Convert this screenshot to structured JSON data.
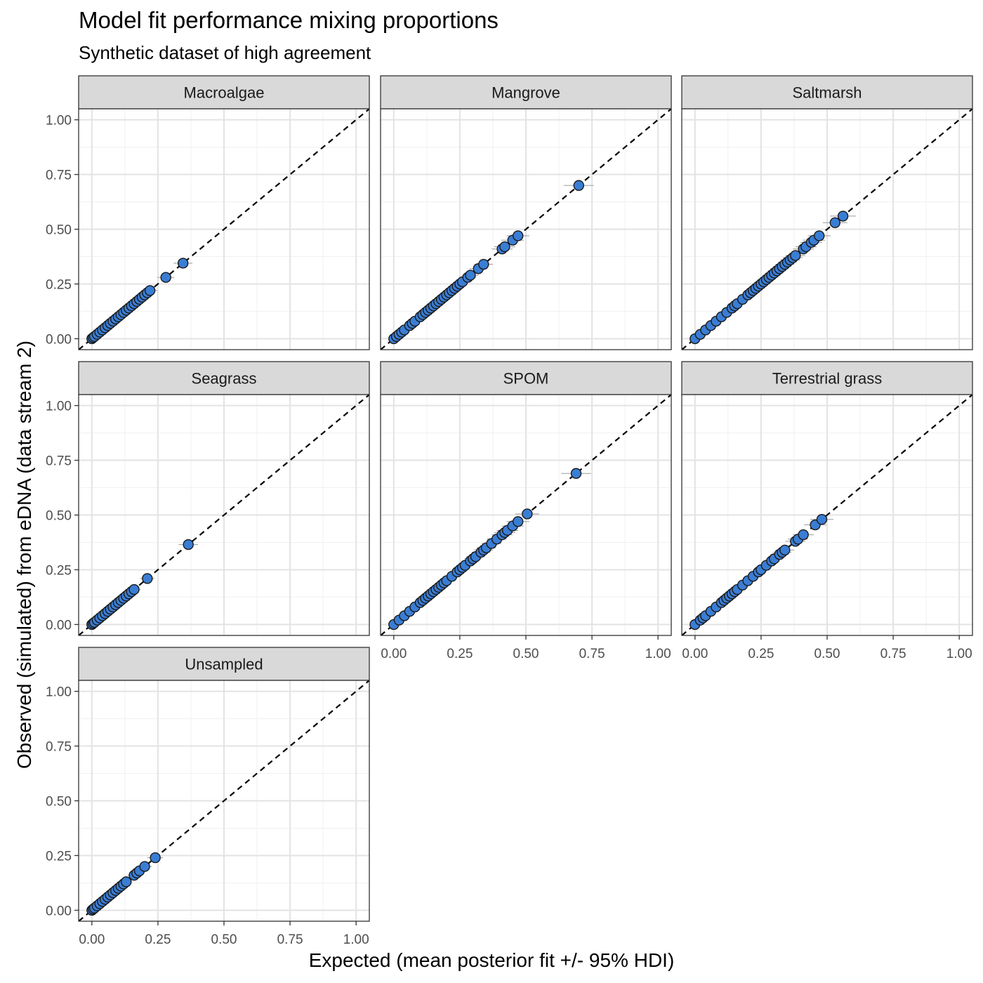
{
  "chart_data": {
    "type": "scatter",
    "title": "Model fit performance mixing proportions",
    "subtitle": "Synthetic dataset of high agreement",
    "xlabel": "Expected (mean posterior fit +/- 95% HDI)",
    "ylabel": "Observed (simulated) from eDNA (data stream 2)",
    "xlim": [
      -0.05,
      1.05
    ],
    "ylim": [
      -0.05,
      1.05
    ],
    "x_ticks": [
      "0.00",
      "0.25",
      "0.50",
      "0.75",
      "1.00"
    ],
    "y_ticks": [
      "0.00",
      "0.25",
      "0.50",
      "0.75",
      "1.00"
    ],
    "grid": true,
    "reference_line": "y = x (dashed)",
    "point_color": "#3a7dd4",
    "facets": [
      {
        "name": "Macroalgae",
        "points": [
          [
            0,
            0
          ],
          [
            0.005,
            0.005
          ],
          [
            0.01,
            0.01
          ],
          [
            0.02,
            0.02
          ],
          [
            0.03,
            0.03
          ],
          [
            0.04,
            0.04
          ],
          [
            0.05,
            0.05
          ],
          [
            0.06,
            0.06
          ],
          [
            0.07,
            0.07
          ],
          [
            0.08,
            0.08
          ],
          [
            0.09,
            0.09
          ],
          [
            0.1,
            0.1
          ],
          [
            0.11,
            0.11
          ],
          [
            0.12,
            0.12
          ],
          [
            0.13,
            0.13
          ],
          [
            0.14,
            0.14
          ],
          [
            0.15,
            0.15
          ],
          [
            0.16,
            0.16
          ],
          [
            0.17,
            0.17
          ],
          [
            0.18,
            0.18
          ],
          [
            0.19,
            0.19
          ],
          [
            0.2,
            0.2
          ],
          [
            0.21,
            0.21
          ],
          [
            0.22,
            0.22
          ],
          [
            0.28,
            0.28
          ],
          [
            0.345,
            0.345
          ]
        ]
      },
      {
        "name": "Mangrove",
        "points": [
          [
            0,
            0
          ],
          [
            0.01,
            0.01
          ],
          [
            0.02,
            0.02
          ],
          [
            0.03,
            0.03
          ],
          [
            0.04,
            0.04
          ],
          [
            0.06,
            0.06
          ],
          [
            0.07,
            0.07
          ],
          [
            0.08,
            0.08
          ],
          [
            0.1,
            0.1
          ],
          [
            0.11,
            0.11
          ],
          [
            0.12,
            0.12
          ],
          [
            0.13,
            0.13
          ],
          [
            0.14,
            0.14
          ],
          [
            0.15,
            0.15
          ],
          [
            0.16,
            0.16
          ],
          [
            0.17,
            0.17
          ],
          [
            0.18,
            0.18
          ],
          [
            0.19,
            0.19
          ],
          [
            0.2,
            0.2
          ],
          [
            0.21,
            0.21
          ],
          [
            0.22,
            0.22
          ],
          [
            0.23,
            0.23
          ],
          [
            0.24,
            0.24
          ],
          [
            0.25,
            0.25
          ],
          [
            0.26,
            0.26
          ],
          [
            0.28,
            0.28
          ],
          [
            0.29,
            0.29
          ],
          [
            0.32,
            0.32
          ],
          [
            0.34,
            0.34
          ],
          [
            0.41,
            0.41
          ],
          [
            0.42,
            0.42
          ],
          [
            0.45,
            0.45
          ],
          [
            0.47,
            0.47
          ],
          [
            0.7,
            0.7
          ]
        ]
      },
      {
        "name": "Saltmarsh",
        "points": [
          [
            0,
            0
          ],
          [
            0.02,
            0.02
          ],
          [
            0.04,
            0.04
          ],
          [
            0.06,
            0.06
          ],
          [
            0.08,
            0.08
          ],
          [
            0.1,
            0.1
          ],
          [
            0.12,
            0.12
          ],
          [
            0.14,
            0.14
          ],
          [
            0.15,
            0.15
          ],
          [
            0.16,
            0.16
          ],
          [
            0.18,
            0.18
          ],
          [
            0.2,
            0.2
          ],
          [
            0.21,
            0.21
          ],
          [
            0.22,
            0.22
          ],
          [
            0.23,
            0.23
          ],
          [
            0.24,
            0.24
          ],
          [
            0.25,
            0.25
          ],
          [
            0.26,
            0.26
          ],
          [
            0.27,
            0.27
          ],
          [
            0.28,
            0.28
          ],
          [
            0.29,
            0.29
          ],
          [
            0.3,
            0.3
          ],
          [
            0.31,
            0.31
          ],
          [
            0.32,
            0.32
          ],
          [
            0.33,
            0.33
          ],
          [
            0.34,
            0.34
          ],
          [
            0.35,
            0.35
          ],
          [
            0.36,
            0.36
          ],
          [
            0.37,
            0.37
          ],
          [
            0.38,
            0.38
          ],
          [
            0.41,
            0.41
          ],
          [
            0.42,
            0.42
          ],
          [
            0.44,
            0.44
          ],
          [
            0.45,
            0.45
          ],
          [
            0.47,
            0.47
          ],
          [
            0.53,
            0.53
          ],
          [
            0.56,
            0.56
          ]
        ]
      },
      {
        "name": "Seagrass",
        "points": [
          [
            0,
            0
          ],
          [
            0.005,
            0.005
          ],
          [
            0.01,
            0.01
          ],
          [
            0.02,
            0.02
          ],
          [
            0.03,
            0.03
          ],
          [
            0.04,
            0.04
          ],
          [
            0.05,
            0.05
          ],
          [
            0.06,
            0.06
          ],
          [
            0.07,
            0.07
          ],
          [
            0.08,
            0.08
          ],
          [
            0.09,
            0.09
          ],
          [
            0.1,
            0.1
          ],
          [
            0.11,
            0.11
          ],
          [
            0.12,
            0.12
          ],
          [
            0.13,
            0.13
          ],
          [
            0.14,
            0.14
          ],
          [
            0.15,
            0.15
          ],
          [
            0.16,
            0.16
          ],
          [
            0.21,
            0.21
          ],
          [
            0.365,
            0.365
          ]
        ]
      },
      {
        "name": "SPOM",
        "points": [
          [
            0,
            0
          ],
          [
            0.02,
            0.02
          ],
          [
            0.04,
            0.04
          ],
          [
            0.06,
            0.06
          ],
          [
            0.08,
            0.08
          ],
          [
            0.1,
            0.1
          ],
          [
            0.11,
            0.11
          ],
          [
            0.12,
            0.12
          ],
          [
            0.13,
            0.13
          ],
          [
            0.14,
            0.14
          ],
          [
            0.15,
            0.15
          ],
          [
            0.16,
            0.16
          ],
          [
            0.17,
            0.17
          ],
          [
            0.18,
            0.18
          ],
          [
            0.19,
            0.19
          ],
          [
            0.2,
            0.2
          ],
          [
            0.22,
            0.22
          ],
          [
            0.24,
            0.24
          ],
          [
            0.25,
            0.25
          ],
          [
            0.26,
            0.26
          ],
          [
            0.27,
            0.27
          ],
          [
            0.29,
            0.29
          ],
          [
            0.3,
            0.3
          ],
          [
            0.31,
            0.31
          ],
          [
            0.33,
            0.33
          ],
          [
            0.34,
            0.34
          ],
          [
            0.35,
            0.35
          ],
          [
            0.37,
            0.37
          ],
          [
            0.39,
            0.39
          ],
          [
            0.41,
            0.41
          ],
          [
            0.42,
            0.42
          ],
          [
            0.43,
            0.43
          ],
          [
            0.45,
            0.45
          ],
          [
            0.47,
            0.47
          ],
          [
            0.505,
            0.505
          ],
          [
            0.69,
            0.69
          ]
        ]
      },
      {
        "name": "Terrestrial grass",
        "points": [
          [
            0,
            0
          ],
          [
            0.02,
            0.02
          ],
          [
            0.03,
            0.03
          ],
          [
            0.04,
            0.04
          ],
          [
            0.06,
            0.06
          ],
          [
            0.08,
            0.08
          ],
          [
            0.1,
            0.1
          ],
          [
            0.11,
            0.11
          ],
          [
            0.12,
            0.12
          ],
          [
            0.13,
            0.13
          ],
          [
            0.14,
            0.14
          ],
          [
            0.15,
            0.15
          ],
          [
            0.16,
            0.16
          ],
          [
            0.18,
            0.18
          ],
          [
            0.2,
            0.2
          ],
          [
            0.22,
            0.22
          ],
          [
            0.24,
            0.24
          ],
          [
            0.25,
            0.25
          ],
          [
            0.27,
            0.27
          ],
          [
            0.29,
            0.29
          ],
          [
            0.3,
            0.3
          ],
          [
            0.32,
            0.32
          ],
          [
            0.33,
            0.33
          ],
          [
            0.34,
            0.34
          ],
          [
            0.38,
            0.38
          ],
          [
            0.39,
            0.39
          ],
          [
            0.41,
            0.41
          ],
          [
            0.455,
            0.455
          ],
          [
            0.48,
            0.48
          ]
        ]
      },
      {
        "name": "Unsampled",
        "points": [
          [
            0,
            0
          ],
          [
            0.005,
            0.005
          ],
          [
            0.01,
            0.01
          ],
          [
            0.02,
            0.02
          ],
          [
            0.03,
            0.03
          ],
          [
            0.04,
            0.04
          ],
          [
            0.05,
            0.05
          ],
          [
            0.06,
            0.06
          ],
          [
            0.07,
            0.07
          ],
          [
            0.08,
            0.08
          ],
          [
            0.09,
            0.09
          ],
          [
            0.1,
            0.1
          ],
          [
            0.11,
            0.11
          ],
          [
            0.12,
            0.12
          ],
          [
            0.13,
            0.13
          ],
          [
            0.16,
            0.16
          ],
          [
            0.17,
            0.17
          ],
          [
            0.18,
            0.18
          ],
          [
            0.2,
            0.2
          ],
          [
            0.24,
            0.24
          ]
        ]
      }
    ]
  }
}
